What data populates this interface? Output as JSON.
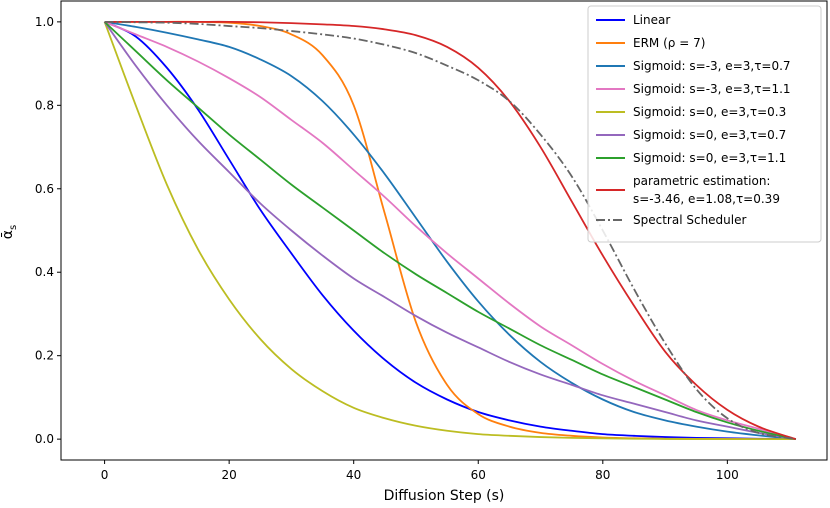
{
  "chart_data": {
    "type": "line",
    "title": "",
    "xlabel": "Diffusion Step (s)",
    "ylabel": "ᾱ_s",
    "ylabel_main": "ᾱ",
    "ylabel_sub": "s",
    "xlim": [
      -7,
      116
    ],
    "ylim": [
      -0.05,
      1.05
    ],
    "xticks": [
      0,
      20,
      40,
      60,
      80,
      100
    ],
    "yticks": [
      0.0,
      0.2,
      0.4,
      0.6,
      0.8,
      1.0
    ],
    "xtick_labels": [
      "0",
      "20",
      "40",
      "60",
      "80",
      "100"
    ],
    "ytick_labels": [
      "0.0",
      "0.2",
      "0.4",
      "0.6",
      "0.8",
      "1.0"
    ],
    "grid": false,
    "legend_position": "top-right",
    "x": [
      0,
      5,
      10,
      15,
      20,
      25,
      30,
      35,
      40,
      45,
      50,
      55,
      60,
      65,
      70,
      75,
      80,
      85,
      90,
      95,
      100,
      105,
      111
    ],
    "series": [
      {
        "name": "Linear",
        "color": "#0000ff",
        "dash": "solid",
        "values": [
          1.0,
          0.965,
          0.89,
          0.79,
          0.67,
          0.55,
          0.445,
          0.345,
          0.26,
          0.19,
          0.135,
          0.095,
          0.065,
          0.045,
          0.03,
          0.02,
          0.012,
          0.008,
          0.005,
          0.003,
          0.002,
          0.001,
          0.0
        ]
      },
      {
        "name": "ERM (ρ = 7)",
        "color": "#ff7f0e",
        "dash": "solid",
        "values": [
          1.0,
          1.0,
          1.0,
          1.0,
          0.998,
          0.99,
          0.97,
          0.92,
          0.8,
          0.54,
          0.28,
          0.13,
          0.06,
          0.03,
          0.015,
          0.008,
          0.004,
          0.002,
          0.001,
          0.0005,
          0.0002,
          0.0001,
          0.0
        ]
      },
      {
        "name": "Sigmoid: s=-3, e=3,τ=0.7",
        "color": "#1f77b4",
        "dash": "solid",
        "values": [
          1.0,
          0.988,
          0.974,
          0.958,
          0.94,
          0.91,
          0.87,
          0.81,
          0.73,
          0.635,
          0.53,
          0.425,
          0.33,
          0.25,
          0.185,
          0.135,
          0.095,
          0.065,
          0.045,
          0.03,
          0.018,
          0.009,
          0.0
        ]
      },
      {
        "name": "Sigmoid: s=-3, e=3,τ=1.1",
        "color": "#e377c2",
        "dash": "solid",
        "values": [
          1.0,
          0.97,
          0.94,
          0.905,
          0.865,
          0.82,
          0.765,
          0.71,
          0.645,
          0.58,
          0.51,
          0.445,
          0.385,
          0.325,
          0.27,
          0.225,
          0.18,
          0.14,
          0.105,
          0.07,
          0.045,
          0.025,
          0.0
        ]
      },
      {
        "name": "Sigmoid: s=0, e=3,τ=0.3",
        "color": "#bcbd22",
        "dash": "solid",
        "values": [
          1.0,
          0.8,
          0.61,
          0.455,
          0.335,
          0.24,
          0.168,
          0.115,
          0.075,
          0.05,
          0.032,
          0.02,
          0.012,
          0.008,
          0.005,
          0.003,
          0.002,
          0.001,
          0.0005,
          0.0002,
          0.0001,
          0.0,
          0.0
        ]
      },
      {
        "name": "Sigmoid: s=0, e=3,τ=0.7",
        "color": "#9467bd",
        "dash": "solid",
        "values": [
          1.0,
          0.895,
          0.8,
          0.715,
          0.64,
          0.565,
          0.5,
          0.44,
          0.385,
          0.34,
          0.295,
          0.255,
          0.22,
          0.185,
          0.155,
          0.13,
          0.105,
          0.085,
          0.065,
          0.045,
          0.03,
          0.015,
          0.0
        ]
      },
      {
        "name": "Sigmoid: s=0, e=3,τ=1.1",
        "color": "#2ca02c",
        "dash": "solid",
        "values": [
          1.0,
          0.93,
          0.86,
          0.795,
          0.73,
          0.67,
          0.61,
          0.555,
          0.5,
          0.445,
          0.395,
          0.35,
          0.305,
          0.265,
          0.225,
          0.19,
          0.155,
          0.125,
          0.095,
          0.065,
          0.04,
          0.02,
          0.0
        ]
      },
      {
        "name": "parametric estimation:",
        "name_line2": " s=-3.46, e=1.08,τ=0.39",
        "color": "#d62728",
        "dash": "solid",
        "values": [
          1.0,
          1.0,
          1.0,
          1.0,
          1.0,
          0.999,
          0.997,
          0.994,
          0.99,
          0.982,
          0.968,
          0.94,
          0.89,
          0.81,
          0.7,
          0.57,
          0.44,
          0.32,
          0.21,
          0.13,
          0.07,
          0.03,
          0.0
        ]
      },
      {
        "name": "Spectral Scheduler",
        "color": "#666666",
        "dash": "dashdot",
        "values": [
          1.0,
          0.999,
          0.998,
          0.995,
          0.99,
          0.985,
          0.978,
          0.97,
          0.96,
          0.945,
          0.925,
          0.895,
          0.86,
          0.81,
          0.73,
          0.63,
          0.5,
          0.36,
          0.23,
          0.12,
          0.05,
          0.015,
          0.0
        ]
      }
    ]
  }
}
